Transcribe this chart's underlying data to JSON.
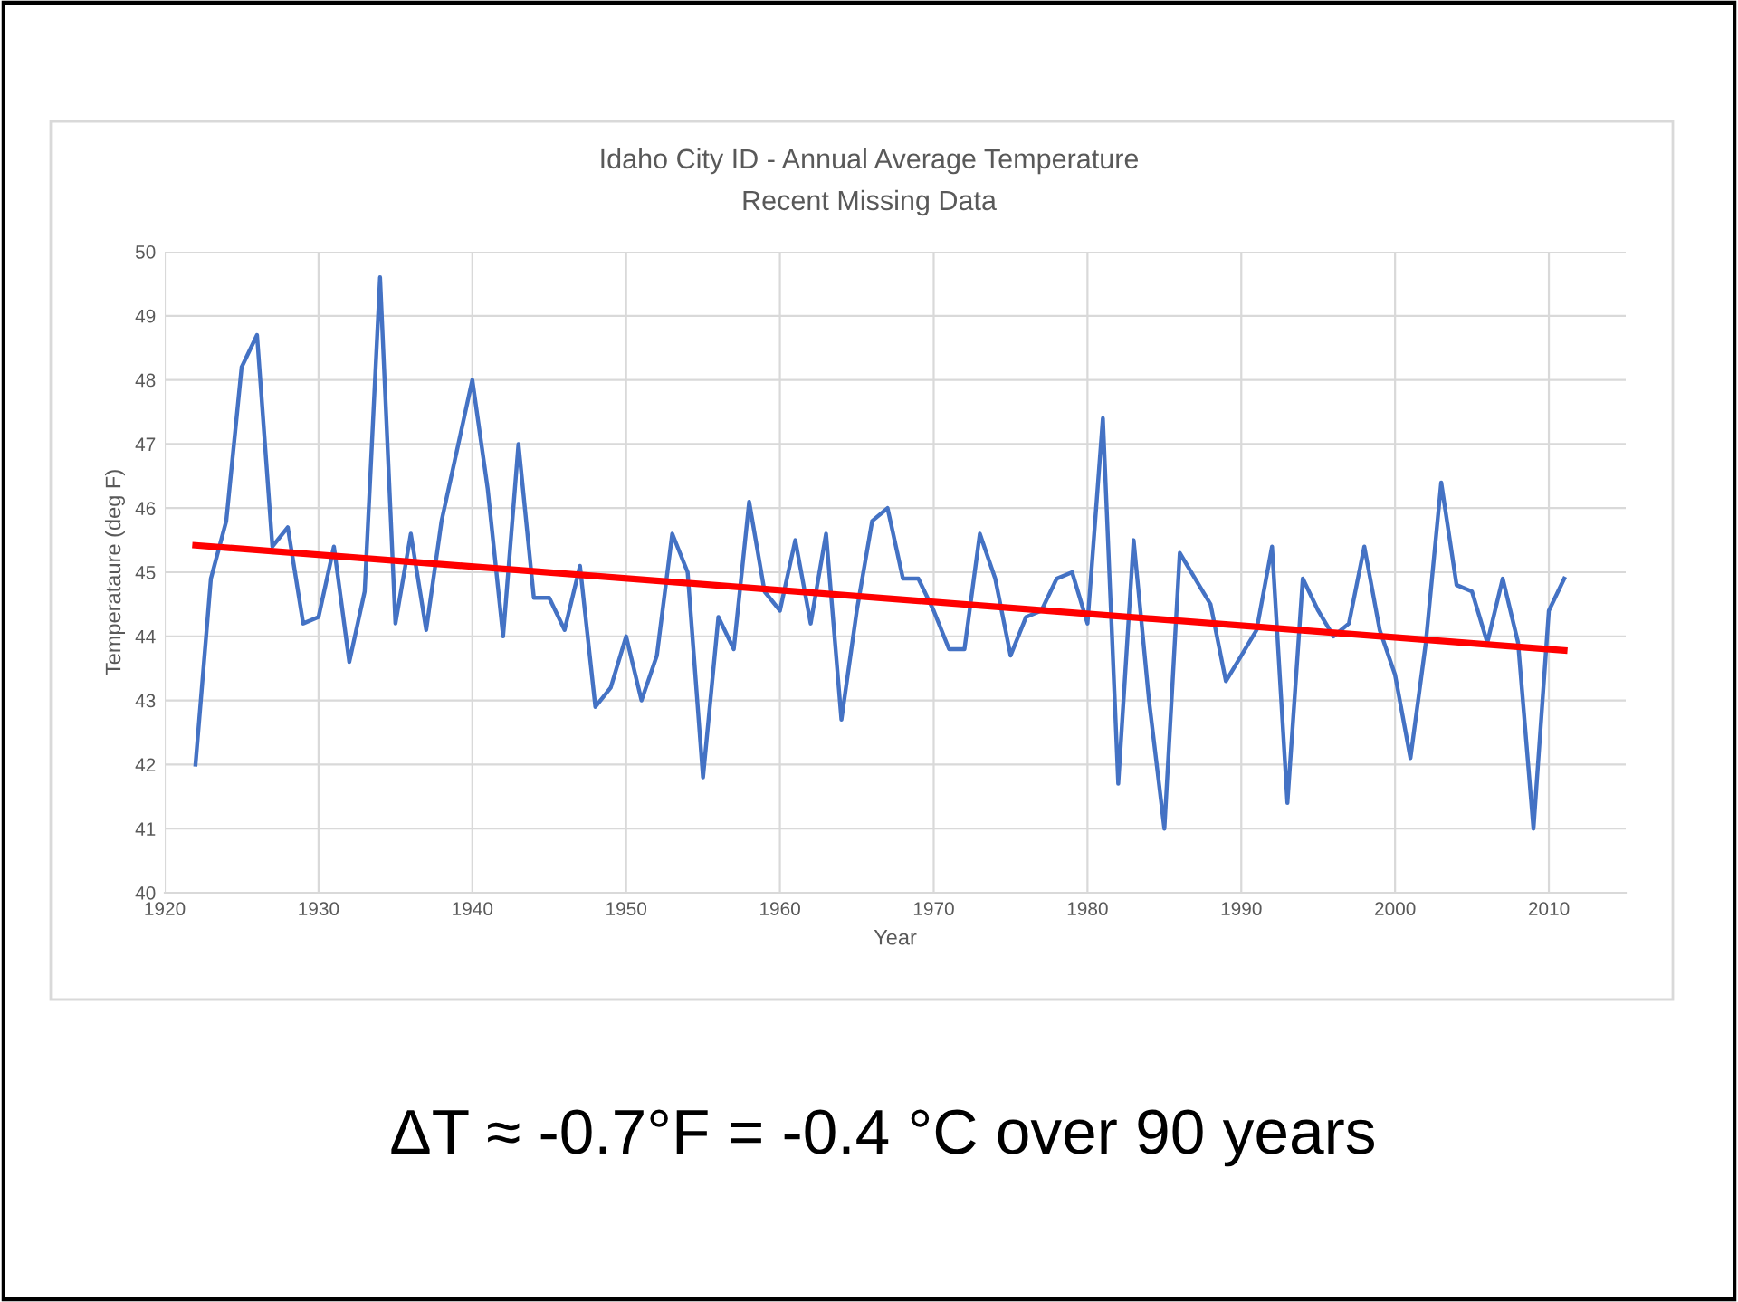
{
  "chart_data": {
    "type": "line",
    "title": "Idaho City ID - Annual Average Temperature",
    "subtitle": "Recent Missing Data",
    "xlabel": "Year",
    "ylabel": "Temperataure (deg F)",
    "series": [
      {
        "color": "#4472c4",
        "x": [
          1922,
          1923,
          1924,
          1925,
          1926,
          1927,
          1928,
          1929,
          1930,
          1931,
          1932,
          1933,
          1934,
          1935,
          1936,
          1937,
          1938,
          1939,
          1940,
          1941,
          1942,
          1943,
          1944,
          1945,
          1946,
          1947,
          1948,
          1949,
          1950,
          1951,
          1952,
          1953,
          1954,
          1955,
          1956,
          1957,
          1958,
          1959,
          1960,
          1961,
          1962,
          1963,
          1964,
          1965,
          1966,
          1967,
          1968,
          1969,
          1970,
          1971,
          1972,
          1973,
          1974,
          1975,
          1976,
          1977,
          1978,
          1979,
          1980,
          1981,
          1982,
          1983,
          1984,
          1985,
          1986,
          1987,
          1988,
          1989,
          1990,
          1991,
          1992,
          1993,
          1994,
          1995,
          1996,
          1997,
          1998,
          1999,
          2000,
          2001,
          2002,
          2003,
          2004,
          2005,
          2006,
          2007,
          2008,
          2009,
          2010,
          2011
        ],
        "values": [
          42.0,
          44.9,
          45.8,
          48.2,
          48.7,
          45.4,
          45.7,
          44.2,
          44.3,
          45.4,
          43.6,
          44.7,
          49.6,
          44.2,
          45.6,
          44.1,
          45.8,
          46.9,
          48.0,
          46.3,
          44.0,
          47.0,
          44.6,
          44.6,
          44.1,
          45.1,
          42.9,
          43.2,
          44.0,
          43.0,
          43.7,
          45.6,
          45.0,
          41.8,
          44.3,
          43.8,
          46.1,
          44.7,
          44.4,
          45.5,
          44.2,
          45.6,
          42.7,
          44.4,
          45.8,
          46.0,
          44.9,
          44.9,
          44.4,
          43.8,
          43.8,
          45.6,
          44.9,
          43.7,
          44.3,
          44.4,
          44.9,
          45.0,
          44.2,
          47.4,
          41.7,
          45.5,
          43.0,
          41.0,
          45.3,
          44.9,
          44.5,
          43.3,
          43.7,
          44.1,
          45.4,
          41.4,
          44.9,
          44.4,
          44.0,
          44.2,
          45.4,
          44.1,
          43.4,
          42.1,
          43.9,
          46.4,
          44.8,
          44.7,
          43.9,
          44.9,
          43.9,
          41.0,
          44.4,
          44.9
        ]
      },
      {
        "color": "#ff0000",
        "x": [
          1922,
          2011
        ],
        "values": [
          45.42,
          43.78
        ]
      }
    ],
    "xlim": [
      1920,
      2015
    ],
    "xticks": [
      1920,
      1930,
      1940,
      1950,
      1960,
      1970,
      1980,
      1990,
      2000,
      2010
    ],
    "ylim": [
      40,
      50
    ],
    "yticks": [
      40,
      41,
      42,
      43,
      44,
      45,
      46,
      47,
      48,
      49,
      50
    ],
    "grid": true,
    "marker": "none",
    "line_style": "solid",
    "annotations": [
      "ΔT ≈ -0.7°F = -0.4 °C over 90 years"
    ]
  }
}
